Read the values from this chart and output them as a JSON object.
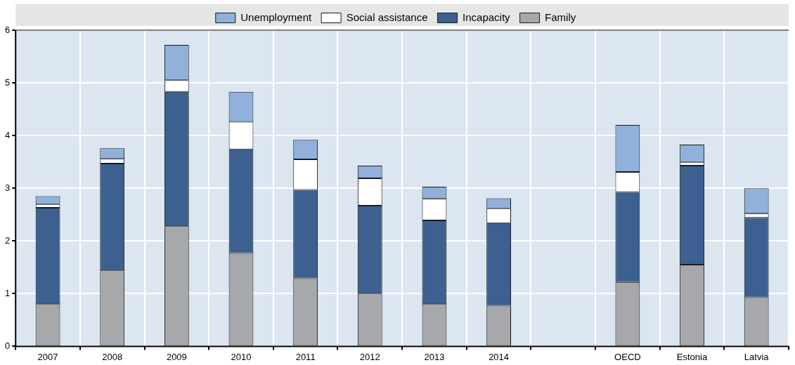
{
  "chart_data": {
    "type": "bar",
    "stacked": true,
    "categories": [
      "2007",
      "2008",
      "2009",
      "2010",
      "2011",
      "2012",
      "2013",
      "2014",
      null,
      "OECD",
      "Estonia",
      "Latvia"
    ],
    "series": [
      {
        "name": "Family",
        "color": "#a7a8ac",
        "values": [
          0.8,
          1.44,
          2.28,
          1.77,
          1.29,
          1.0,
          0.8,
          0.77,
          null,
          1.22,
          1.55,
          0.93
        ]
      },
      {
        "name": "Incapacity",
        "color": "#3c6090",
        "values": [
          1.83,
          2.03,
          2.55,
          1.97,
          1.68,
          1.67,
          1.59,
          1.57,
          null,
          1.71,
          1.88,
          1.51
        ]
      },
      {
        "name": "Social assistance",
        "color": "#ffffff",
        "values": [
          0.07,
          0.09,
          0.22,
          0.52,
          0.58,
          0.52,
          0.41,
          0.28,
          null,
          0.38,
          0.07,
          0.08
        ]
      },
      {
        "name": "Unemployment",
        "color": "#8fb1dc",
        "values": [
          0.15,
          0.2,
          0.67,
          0.57,
          0.37,
          0.24,
          0.23,
          0.19,
          null,
          0.89,
          0.33,
          0.48
        ]
      }
    ],
    "ylim": [
      0,
      6
    ],
    "yticks": [
      0,
      1,
      2,
      3,
      4,
      5,
      6
    ],
    "grid": true,
    "legend": "top"
  }
}
